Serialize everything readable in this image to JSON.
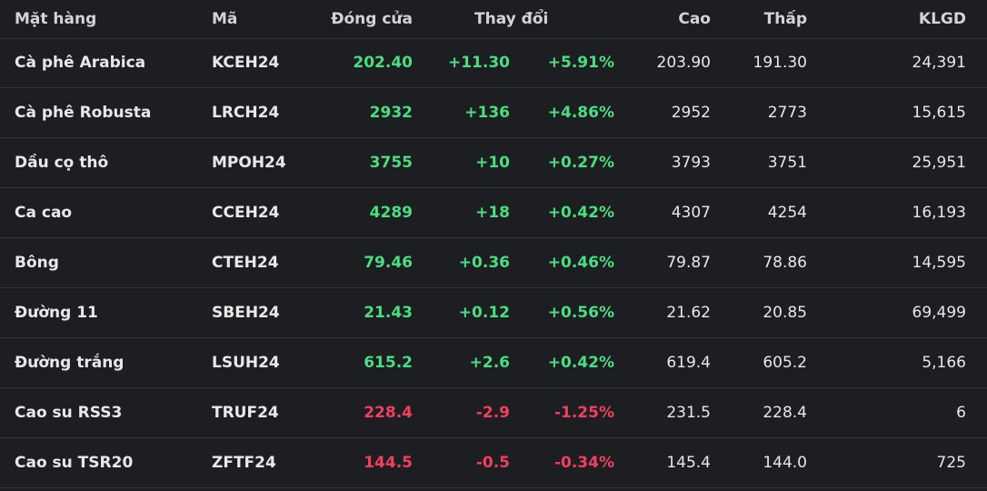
{
  "table": {
    "headers": [
      "Mặt hàng",
      "Mã",
      "Đóng cửa",
      "Thay đổi",
      "Cao",
      "Thấp",
      "KLGD"
    ],
    "rows": [
      {
        "cells": [
          "Cà phê Arabica",
          "KCEH24",
          "202.40",
          "+11.30",
          "+5.91%",
          "203.90",
          "191.30",
          "24,391"
        ],
        "color": "#4ade80"
      },
      {
        "cells": [
          "Cà phê Robusta",
          "LRCH24",
          "2932",
          "+136",
          "+4.86%",
          "2952",
          "2773",
          "15,615"
        ],
        "color": "#4ade80"
      },
      {
        "cells": [
          "Dầu cọ thô",
          "MPOH24",
          "3755",
          "+10",
          "+0.27%",
          "3793",
          "3751",
          "25,951"
        ],
        "color": "#4ade80"
      },
      {
        "cells": [
          "Ca cao",
          "CCEH24",
          "4289",
          "+18",
          "+0.42%",
          "4307",
          "4254",
          "16,193"
        ],
        "color": "#4ade80"
      },
      {
        "cells": [
          "Bông",
          "CTEH24",
          "79.46",
          "+0.36",
          "+0.46%",
          "79.87",
          "78.86",
          "14,595"
        ],
        "color": "#4ade80"
      },
      {
        "cells": [
          "Đường 11",
          "SBEH24",
          "21.43",
          "+0.12",
          "+0.56%",
          "21.62",
          "20.85",
          "69,499"
        ],
        "color": "#4ade80"
      },
      {
        "cells": [
          "Đường trắng",
          "LSUH24",
          "615.2",
          "+2.6",
          "+0.42%",
          "619.4",
          "605.2",
          "5,166"
        ],
        "color": "#4ade80"
      },
      {
        "cells": [
          "Cao su RSS3",
          "TRUF24",
          "228.4",
          "-2.9",
          "-1.25%",
          "231.5",
          "228.4",
          "6"
        ],
        "color": "#f43f5e"
      },
      {
        "cells": [
          "Cao su TSR20",
          "ZFTF24",
          "144.5",
          "-0.5",
          "-0.34%",
          "145.4",
          "144.0",
          "725"
        ],
        "color": "#f43f5e"
      }
    ]
  }
}
